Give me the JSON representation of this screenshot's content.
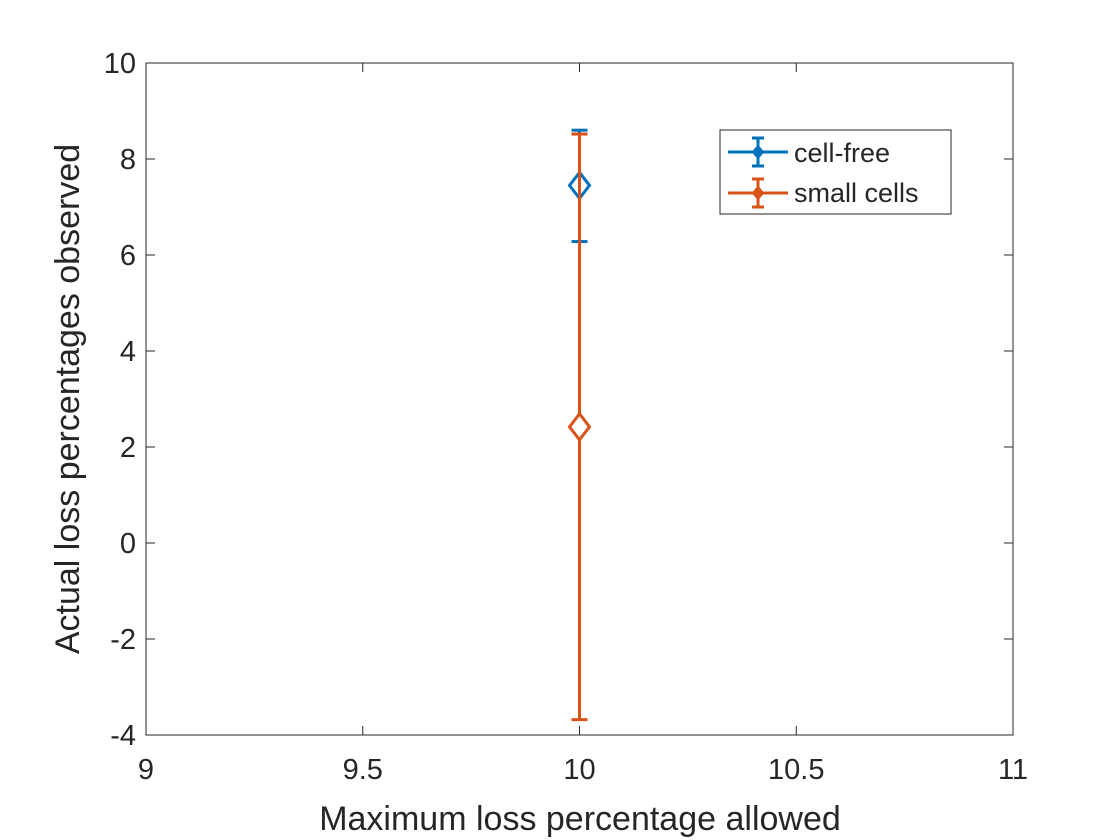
{
  "chart_data": {
    "type": "scatter",
    "xlabel": "Maximum loss percentage allowed",
    "ylabel": "Actual loss percentages observed",
    "xlim": [
      9,
      11
    ],
    "ylim": [
      -4,
      10
    ],
    "x_ticks": [
      "9",
      "9.5",
      "10",
      "10.5",
      "11"
    ],
    "y_ticks": [
      "-4",
      "-2",
      "0",
      "2",
      "4",
      "6",
      "8",
      "10"
    ],
    "grid": false,
    "legend_position": "top-right",
    "series": [
      {
        "name": "cell-free",
        "color": "#0072BD",
        "marker": "diamond",
        "x": [
          10
        ],
        "y": [
          7.45
        ],
        "err_low": [
          6.28
        ],
        "err_high": [
          8.6
        ]
      },
      {
        "name": "small cells",
        "color": "#D95319",
        "marker": "diamond",
        "x": [
          10
        ],
        "y": [
          2.42
        ],
        "err_low": [
          -3.68
        ],
        "err_high": [
          8.52
        ]
      }
    ]
  }
}
